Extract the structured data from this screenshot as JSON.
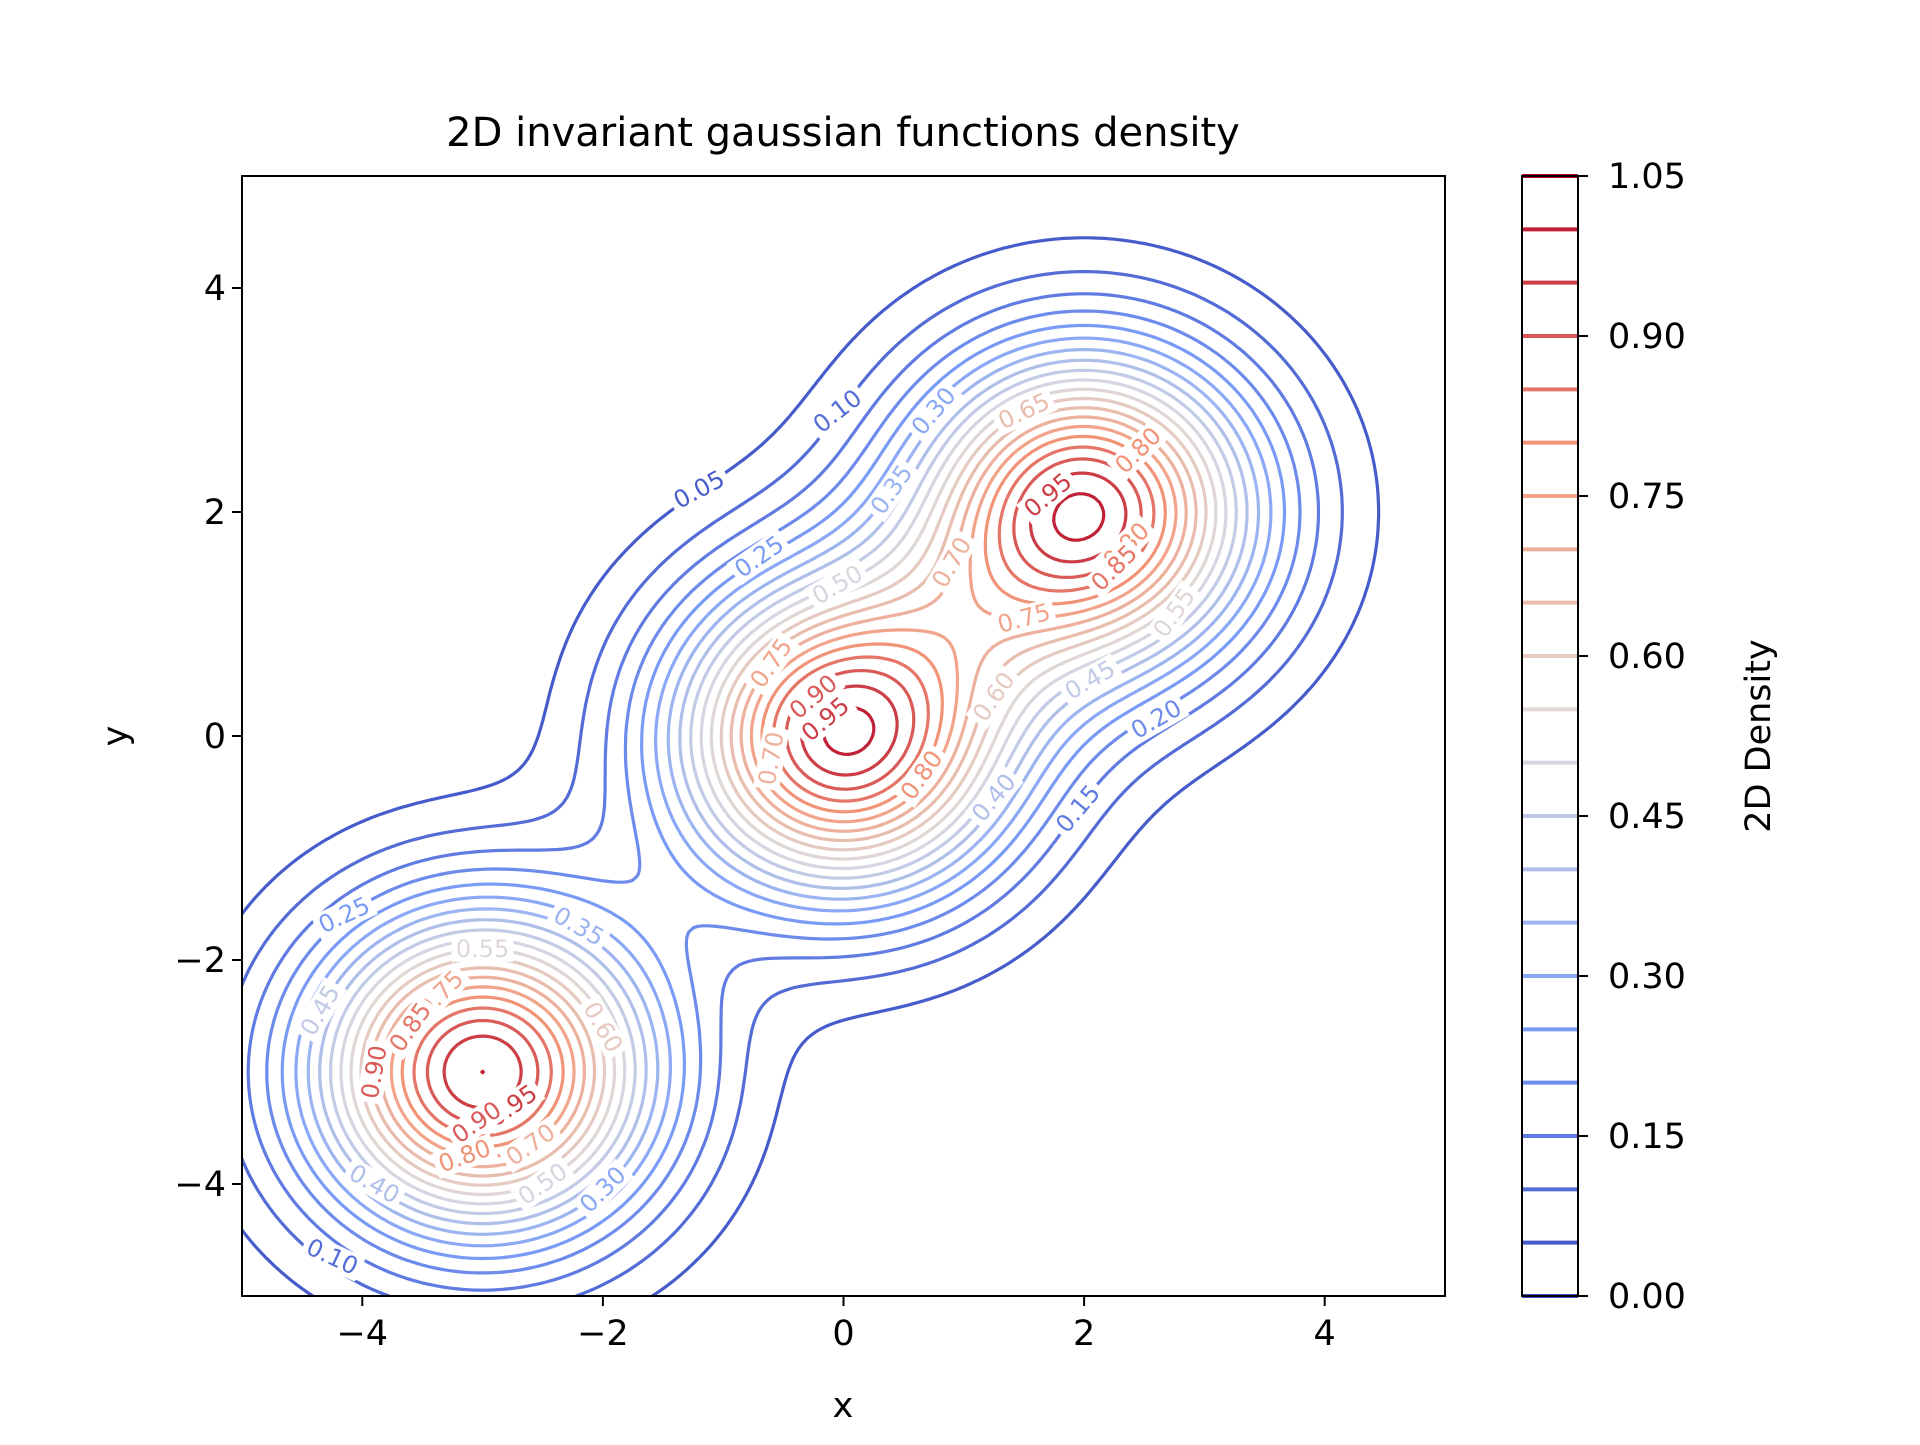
{
  "chart_data": {
    "type": "contour",
    "title": "2D invariant gaussian functions density",
    "xlabel": "x",
    "ylabel": "y",
    "xlim": [
      -5,
      5
    ],
    "ylim": [
      -5,
      5
    ],
    "x_ticks": [
      -4,
      -2,
      0,
      2,
      4
    ],
    "y_ticks": [
      -4,
      -2,
      0,
      2,
      4
    ],
    "x_tick_labels": [
      "−4",
      "−2",
      "0",
      "2",
      "4"
    ],
    "y_tick_labels": [
      "−4",
      "−2",
      "0",
      "2",
      "4"
    ],
    "colormap": "coolwarm",
    "gaussian_centers": [
      {
        "x": 0,
        "y": 0,
        "peak": 1.0
      },
      {
        "x": 2,
        "y": 2,
        "peak": 1.0
      },
      {
        "x": -3,
        "y": -3,
        "peak": 1.0
      }
    ],
    "levels": [
      0.05,
      0.1,
      0.15,
      0.2,
      0.25,
      0.3,
      0.35,
      0.4,
      0.45,
      0.5,
      0.55,
      0.6,
      0.65,
      0.7,
      0.75,
      0.8,
      0.85,
      0.9,
      0.95,
      1.0
    ],
    "contour_labels": [
      {
        "text": "0.05",
        "x": -1.2,
        "y": 2.2,
        "angle": -28,
        "level": 0.05
      },
      {
        "text": "0.10",
        "x": -0.05,
        "y": 2.9,
        "angle": -38,
        "level": 0.1
      },
      {
        "text": "0.30",
        "x": 0.75,
        "y": 2.9,
        "angle": -50,
        "level": 0.3
      },
      {
        "text": "0.35",
        "x": 0.4,
        "y": 2.2,
        "angle": -55,
        "level": 0.35
      },
      {
        "text": "0.25",
        "x": -0.7,
        "y": 1.6,
        "angle": -35,
        "level": 0.25
      },
      {
        "text": "0.50",
        "x": -0.05,
        "y": 1.35,
        "angle": -30,
        "level": 0.5
      },
      {
        "text": "0.65",
        "x": 1.5,
        "y": 2.9,
        "angle": -25,
        "level": 0.65
      },
      {
        "text": "0.80",
        "x": 2.45,
        "y": 2.55,
        "angle": -45,
        "level": 0.8
      },
      {
        "text": "0.95",
        "x": 1.7,
        "y": 2.15,
        "angle": -40,
        "level": 0.95
      },
      {
        "text": "0.80",
        "x": 2.35,
        "y": 1.7,
        "angle": -45,
        "level": 0.8
      },
      {
        "text": "0.85",
        "x": 2.25,
        "y": 1.5,
        "angle": -45,
        "level": 0.85
      },
      {
        "text": "0.70",
        "x": 0.9,
        "y": 1.55,
        "angle": -60,
        "level": 0.7
      },
      {
        "text": "0.75",
        "x": 1.5,
        "y": 1.05,
        "angle": -15,
        "level": 0.75
      },
      {
        "text": "0.55",
        "x": 2.75,
        "y": 1.1,
        "angle": -55,
        "level": 0.55
      },
      {
        "text": "0.75",
        "x": -0.6,
        "y": 0.65,
        "angle": -55,
        "level": 0.75
      },
      {
        "text": "0.90",
        "x": -0.25,
        "y": 0.35,
        "angle": -40,
        "level": 0.9
      },
      {
        "text": "0.95",
        "x": -0.15,
        "y": 0.15,
        "angle": -40,
        "level": 0.95
      },
      {
        "text": "0.60",
        "x": 1.25,
        "y": 0.35,
        "angle": -55,
        "level": 0.6
      },
      {
        "text": "0.45",
        "x": 2.05,
        "y": 0.5,
        "angle": -30,
        "level": 0.45
      },
      {
        "text": "0.20",
        "x": 2.6,
        "y": 0.15,
        "angle": -30,
        "level": 0.2
      },
      {
        "text": "0.80",
        "x": 0.65,
        "y": -0.35,
        "angle": -55,
        "level": 0.8
      },
      {
        "text": "0.40",
        "x": 1.25,
        "y": -0.55,
        "angle": -50,
        "level": 0.4
      },
      {
        "text": "0.15",
        "x": 1.95,
        "y": -0.65,
        "angle": -50,
        "level": 0.15
      },
      {
        "text": "0.70",
        "x": -0.6,
        "y": -0.2,
        "angle": -80,
        "level": 0.7
      },
      {
        "text": "0.25",
        "x": -4.15,
        "y": -1.6,
        "angle": -25,
        "level": 0.25
      },
      {
        "text": "0.35",
        "x": -2.2,
        "y": -1.7,
        "angle": 30,
        "level": 0.35
      },
      {
        "text": "0.55",
        "x": -3.0,
        "y": -1.9,
        "angle": 0,
        "level": 0.55
      },
      {
        "text": "0.45",
        "x": -4.35,
        "y": -2.45,
        "angle": -60,
        "level": 0.45
      },
      {
        "text": "0.60",
        "x": -2.0,
        "y": -2.6,
        "angle": 60,
        "level": 0.6
      },
      {
        "text": "0.75",
        "x": -3.35,
        "y": -2.3,
        "angle": -45,
        "level": 0.75
      },
      {
        "text": "0.85",
        "x": -3.6,
        "y": -2.6,
        "angle": -55,
        "level": 0.85
      },
      {
        "text": "0.95",
        "x": -2.75,
        "y": -3.3,
        "angle": -35,
        "level": 0.95
      },
      {
        "text": "0.90",
        "x": -3.05,
        "y": -3.45,
        "angle": -35,
        "level": 0.9
      },
      {
        "text": "0.80",
        "x": -3.15,
        "y": -3.75,
        "angle": -20,
        "level": 0.8
      },
      {
        "text": "0.70",
        "x": -2.6,
        "y": -3.65,
        "angle": -35,
        "level": 0.7
      },
      {
        "text": "0.90",
        "x": -3.9,
        "y": -3.0,
        "angle": -80,
        "level": 0.9
      },
      {
        "text": "0.40",
        "x": -3.9,
        "y": -4.0,
        "angle": 30,
        "level": 0.4
      },
      {
        "text": "0.50",
        "x": -2.5,
        "y": -4.0,
        "angle": -35,
        "level": 0.5
      },
      {
        "text": "0.30",
        "x": -2.0,
        "y": -4.05,
        "angle": -45,
        "level": 0.3
      },
      {
        "text": "0.10",
        "x": -4.25,
        "y": -4.65,
        "angle": 25,
        "level": 0.1
      }
    ],
    "colorbar": {
      "label": "2D Density",
      "range": [
        0.0,
        1.05
      ],
      "ticks": [
        0.0,
        0.15,
        0.3,
        0.45,
        0.6,
        0.75,
        0.9,
        1.05
      ],
      "tick_labels": [
        "0.00",
        "0.15",
        "0.30",
        "0.45",
        "0.60",
        "0.75",
        "0.90",
        "1.05"
      ]
    }
  }
}
